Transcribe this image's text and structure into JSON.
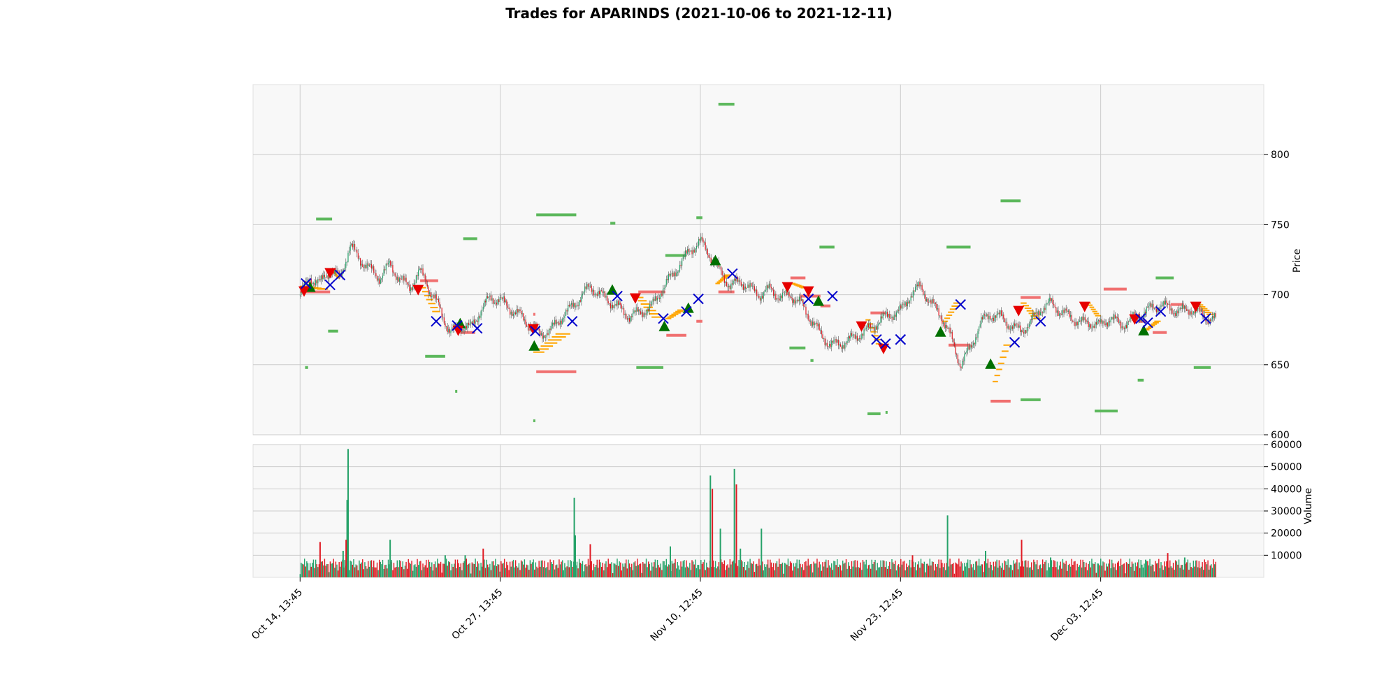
{
  "chart_data": {
    "type": "candlestick",
    "title": "Trades for APARINDS (2021-10-06 to 2021-12-11)",
    "price_panel": {
      "ylabel": "Price",
      "ylim": [
        600,
        850
      ],
      "yticks": [
        600,
        650,
        700,
        750,
        800
      ],
      "grid": true
    },
    "volume_panel": {
      "ylabel": "Volume",
      "ylim": [
        0,
        60000
      ],
      "yticks": [
        10000,
        20000,
        30000,
        40000,
        50000,
        60000
      ],
      "grid": true
    },
    "x_tick_labels": [
      "Oct 14, 13:45",
      "Oct 27, 13:45",
      "Nov 10, 12:45",
      "Nov 23, 12:45",
      "Dec 03, 12:45"
    ],
    "x_tick_index": [
      0,
      0.2,
      0.4,
      0.6,
      0.8
    ],
    "x_range_index": [
      -0.047,
      0.963
    ],
    "close_path": [
      [
        0.0,
        700
      ],
      [
        0.01,
        712
      ],
      [
        0.02,
        708
      ],
      [
        0.03,
        718
      ],
      [
        0.04,
        712
      ],
      [
        0.05,
        735
      ],
      [
        0.06,
        725
      ],
      [
        0.07,
        718
      ],
      [
        0.08,
        712
      ],
      [
        0.09,
        722
      ],
      [
        0.1,
        710
      ],
      [
        0.11,
        706
      ],
      [
        0.12,
        716
      ],
      [
        0.125,
        712
      ],
      [
        0.13,
        702
      ],
      [
        0.14,
        690
      ],
      [
        0.15,
        672
      ],
      [
        0.16,
        678
      ],
      [
        0.17,
        676
      ],
      [
        0.18,
        688
      ],
      [
        0.19,
        698
      ],
      [
        0.2,
        696
      ],
      [
        0.21,
        690
      ],
      [
        0.22,
        685
      ],
      [
        0.23,
        678
      ],
      [
        0.24,
        672
      ],
      [
        0.25,
        674
      ],
      [
        0.26,
        683
      ],
      [
        0.27,
        690
      ],
      [
        0.28,
        698
      ],
      [
        0.29,
        706
      ],
      [
        0.3,
        700
      ],
      [
        0.31,
        695
      ],
      [
        0.32,
        690
      ],
      [
        0.33,
        684
      ],
      [
        0.34,
        688
      ],
      [
        0.35,
        690
      ],
      [
        0.36,
        702
      ],
      [
        0.37,
        712
      ],
      [
        0.38,
        722
      ],
      [
        0.39,
        732
      ],
      [
        0.4,
        738
      ],
      [
        0.41,
        728
      ],
      [
        0.42,
        716
      ],
      [
        0.43,
        706
      ],
      [
        0.44,
        710
      ],
      [
        0.45,
        704
      ],
      [
        0.46,
        700
      ],
      [
        0.47,
        704
      ],
      [
        0.48,
        698
      ],
      [
        0.49,
        700
      ],
      [
        0.5,
        694
      ],
      [
        0.51,
        683
      ],
      [
        0.52,
        672
      ],
      [
        0.53,
        664
      ],
      [
        0.54,
        665
      ],
      [
        0.55,
        668
      ],
      [
        0.56,
        672
      ],
      [
        0.57,
        676
      ],
      [
        0.58,
        682
      ],
      [
        0.59,
        686
      ],
      [
        0.6,
        688
      ],
      [
        0.61,
        700
      ],
      [
        0.62,
        706
      ],
      [
        0.63,
        694
      ],
      [
        0.64,
        686
      ],
      [
        0.65,
        670
      ],
      [
        0.66,
        650
      ],
      [
        0.67,
        662
      ],
      [
        0.68,
        680
      ],
      [
        0.69,
        686
      ],
      [
        0.7,
        684
      ],
      [
        0.71,
        678
      ],
      [
        0.72,
        674
      ],
      [
        0.73,
        680
      ],
      [
        0.74,
        690
      ],
      [
        0.75,
        694
      ],
      [
        0.76,
        688
      ],
      [
        0.77,
        684
      ],
      [
        0.78,
        680
      ],
      [
        0.79,
        680
      ],
      [
        0.8,
        678
      ],
      [
        0.81,
        684
      ],
      [
        0.82,
        678
      ],
      [
        0.83,
        682
      ],
      [
        0.84,
        686
      ],
      [
        0.85,
        690
      ],
      [
        0.86,
        693
      ],
      [
        0.87,
        690
      ],
      [
        0.88,
        688
      ],
      [
        0.89,
        690
      ],
      [
        0.9,
        686
      ],
      [
        0.91,
        683
      ],
      [
        0.915,
        682
      ]
    ],
    "volume_spikes": [
      [
        0.048,
        58000
      ],
      [
        0.047,
        35000
      ],
      [
        0.046,
        17000
      ],
      [
        0.043,
        12000
      ],
      [
        0.09,
        17000
      ],
      [
        0.02,
        16000
      ],
      [
        0.145,
        10000
      ],
      [
        0.165,
        10000
      ],
      [
        0.183,
        13000
      ],
      [
        0.274,
        36000
      ],
      [
        0.275,
        19000
      ],
      [
        0.29,
        15000
      ],
      [
        0.37,
        14000
      ],
      [
        0.41,
        46000
      ],
      [
        0.412,
        40000
      ],
      [
        0.42,
        22000
      ],
      [
        0.434,
        49000
      ],
      [
        0.436,
        42000
      ],
      [
        0.44,
        13000
      ],
      [
        0.461,
        22000
      ],
      [
        0.612,
        10000
      ],
      [
        0.647,
        28000
      ],
      [
        0.685,
        12000
      ],
      [
        0.721,
        17000
      ],
      [
        0.75,
        9000
      ],
      [
        0.845,
        8000
      ],
      [
        0.867,
        11000
      ],
      [
        0.884,
        9000
      ]
    ],
    "buy_markers": [
      [
        0.01,
        705
      ],
      [
        0.16,
        679
      ],
      [
        0.234,
        663
      ],
      [
        0.312,
        703
      ],
      [
        0.364,
        677
      ],
      [
        0.388,
        690
      ],
      [
        0.415,
        724
      ],
      [
        0.518,
        695
      ],
      [
        0.64,
        673
      ],
      [
        0.69,
        650
      ],
      [
        0.843,
        674
      ]
    ],
    "sell_markers": [
      [
        0.004,
        703
      ],
      [
        0.03,
        716
      ],
      [
        0.118,
        704
      ],
      [
        0.158,
        675
      ],
      [
        0.233,
        676
      ],
      [
        0.335,
        698
      ],
      [
        0.487,
        706
      ],
      [
        0.508,
        703
      ],
      [
        0.561,
        678
      ],
      [
        0.583,
        662
      ],
      [
        0.718,
        689
      ],
      [
        0.784,
        692
      ],
      [
        0.834,
        683
      ],
      [
        0.895,
        692
      ]
    ],
    "exit_markers": [
      [
        0.006,
        708
      ],
      [
        0.03,
        707
      ],
      [
        0.04,
        714
      ],
      [
        0.136,
        681
      ],
      [
        0.157,
        678
      ],
      [
        0.177,
        676
      ],
      [
        0.235,
        674
      ],
      [
        0.272,
        681
      ],
      [
        0.317,
        699
      ],
      [
        0.363,
        683
      ],
      [
        0.386,
        688
      ],
      [
        0.398,
        697
      ],
      [
        0.432,
        715
      ],
      [
        0.508,
        697
      ],
      [
        0.532,
        699
      ],
      [
        0.576,
        668
      ],
      [
        0.585,
        665
      ],
      [
        0.6,
        668
      ],
      [
        0.6,
        668
      ],
      [
        0.66,
        693
      ],
      [
        0.714,
        666
      ],
      [
        0.74,
        681
      ],
      [
        0.847,
        680
      ],
      [
        0.84,
        683
      ],
      [
        0.86,
        688
      ],
      [
        0.905,
        683
      ]
    ],
    "stop_levels_green": [
      [
        0.005,
        648,
        0.008
      ],
      [
        0.016,
        754,
        0.032
      ],
      [
        0.028,
        674,
        0.038
      ],
      [
        0.125,
        656,
        0.145
      ],
      [
        0.155,
        631,
        0.157
      ],
      [
        0.163,
        740,
        0.177
      ],
      [
        0.233,
        610,
        0.235
      ],
      [
        0.236,
        757,
        0.276
      ],
      [
        0.31,
        751,
        0.315
      ],
      [
        0.336,
        648,
        0.363
      ],
      [
        0.365,
        728,
        0.386
      ],
      [
        0.396,
        755,
        0.402
      ],
      [
        0.418,
        836,
        0.434
      ],
      [
        0.489,
        662,
        0.505
      ],
      [
        0.51,
        653,
        0.513
      ],
      [
        0.519,
        734,
        0.534
      ],
      [
        0.567,
        615,
        0.58
      ],
      [
        0.585,
        616,
        0.587
      ],
      [
        0.646,
        734,
        0.67
      ],
      [
        0.7,
        767,
        0.72
      ],
      [
        0.72,
        625,
        0.74
      ],
      [
        0.794,
        617,
        0.817
      ],
      [
        0.837,
        639,
        0.843
      ],
      [
        0.855,
        712,
        0.873
      ],
      [
        0.893,
        648,
        0.91
      ]
    ],
    "stop_levels_red": [
      [
        0.0,
        702,
        0.03
      ],
      [
        0.12,
        710,
        0.138
      ],
      [
        0.16,
        673,
        0.175
      ],
      [
        0.233,
        686,
        0.235
      ],
      [
        0.236,
        645,
        0.276
      ],
      [
        0.338,
        702,
        0.365
      ],
      [
        0.366,
        671,
        0.386
      ],
      [
        0.396,
        681,
        0.402
      ],
      [
        0.418,
        702,
        0.434
      ],
      [
        0.49,
        712,
        0.505
      ],
      [
        0.5,
        699,
        0.52
      ],
      [
        0.52,
        692,
        0.53
      ],
      [
        0.57,
        687,
        0.585
      ],
      [
        0.648,
        664,
        0.67
      ],
      [
        0.69,
        624,
        0.71
      ],
      [
        0.72,
        698,
        0.74
      ],
      [
        0.803,
        704,
        0.826
      ],
      [
        0.838,
        681,
        0.846
      ],
      [
        0.852,
        673,
        0.866
      ],
      [
        0.87,
        693,
        0.883
      ]
    ],
    "ladder_segments": [
      [
        0.0,
        706,
        0.028,
        704
      ],
      [
        0.032,
        717,
        0.04,
        712
      ],
      [
        0.12,
        705,
        0.14,
        688
      ],
      [
        0.233,
        659,
        0.27,
        672
      ],
      [
        0.335,
        698,
        0.362,
        684
      ],
      [
        0.365,
        683,
        0.385,
        689
      ],
      [
        0.415,
        708,
        0.43,
        714
      ],
      [
        0.49,
        708,
        0.507,
        705
      ],
      [
        0.565,
        682,
        0.582,
        665
      ],
      [
        0.642,
        681,
        0.66,
        694
      ],
      [
        0.692,
        638,
        0.71,
        664
      ],
      [
        0.72,
        694,
        0.74,
        683
      ],
      [
        0.786,
        694,
        0.8,
        685
      ],
      [
        0.844,
        675,
        0.86,
        681
      ],
      [
        0.895,
        694,
        0.913,
        686
      ]
    ],
    "colors": {
      "up": "#26a269",
      "down": "#e01b24",
      "buy_marker": "#007000",
      "sell_marker": "#e60000",
      "exit_marker": "#0000cc",
      "stop_green": "#5cb85c",
      "stop_red": "#f07070",
      "ladder": "#ffa500",
      "panel_bg": "#f8f8f8",
      "grid": "#cccccc"
    }
  }
}
